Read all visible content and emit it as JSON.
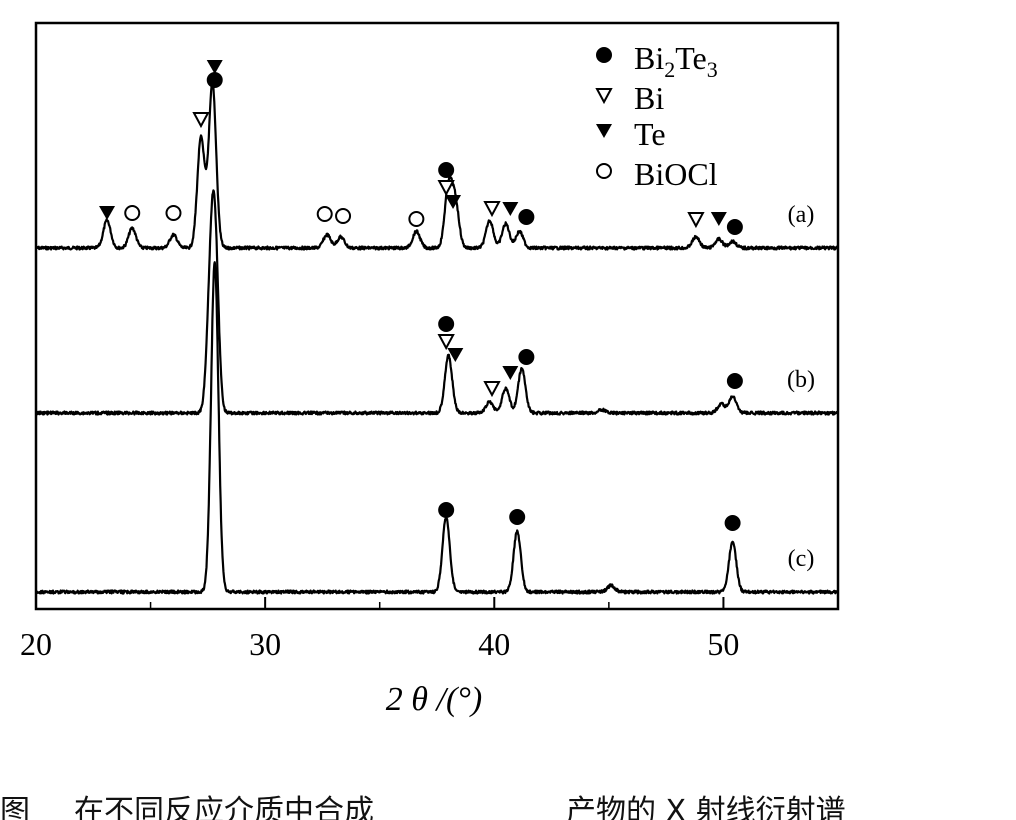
{
  "chart_data": {
    "type": "line",
    "xlabel": "2 θ /(°)",
    "ylabel": "",
    "xlim": [
      20,
      55
    ],
    "x_ticks": [
      "20",
      "30",
      "40",
      "50"
    ],
    "grid": false,
    "legend_position": "top-right",
    "legend": [
      {
        "marker": "filled-circle-icon",
        "label": "Bi2Te3"
      },
      {
        "marker": "open-down-triangle-icon",
        "label": "Bi"
      },
      {
        "marker": "filled-down-triangle-icon",
        "label": "Te"
      },
      {
        "marker": "open-circle-icon",
        "label": "BiOCl"
      }
    ],
    "series": [
      {
        "name": "(a)",
        "baseline": 0.0,
        "peaks": [
          {
            "x": 23.1,
            "height": 0.25
          },
          {
            "x": 24.2,
            "height": 0.18
          },
          {
            "x": 26.0,
            "height": 0.12
          },
          {
            "x": 27.2,
            "height": 1.0
          },
          {
            "x": 27.7,
            "height": 1.5
          },
          {
            "x": 32.7,
            "height": 0.12
          },
          {
            "x": 33.3,
            "height": 0.1
          },
          {
            "x": 36.6,
            "height": 0.15
          },
          {
            "x": 38.0,
            "height": 0.55
          },
          {
            "x": 38.3,
            "height": 0.4
          },
          {
            "x": 39.8,
            "height": 0.25
          },
          {
            "x": 40.5,
            "height": 0.22
          },
          {
            "x": 41.1,
            "height": 0.15
          },
          {
            "x": 48.8,
            "height": 0.1
          },
          {
            "x": 49.8,
            "height": 0.08
          },
          {
            "x": 50.4,
            "height": 0.06
          }
        ],
        "annotations": [
          {
            "x": 23.1,
            "marker": "filled-down-triangle-icon"
          },
          {
            "x": 24.2,
            "marker": "open-circle-icon"
          },
          {
            "x": 26.0,
            "marker": "open-circle-icon"
          },
          {
            "x": 27.2,
            "marker": "open-down-triangle-icon"
          },
          {
            "x": 27.8,
            "marker": "filled-down-triangle-icon"
          },
          {
            "x": 27.8,
            "marker": "filled-circle-icon"
          },
          {
            "x": 32.6,
            "marker": "open-circle-icon"
          },
          {
            "x": 33.4,
            "marker": "open-circle-icon"
          },
          {
            "x": 36.6,
            "marker": "open-circle-icon"
          },
          {
            "x": 37.9,
            "marker": "filled-circle-icon"
          },
          {
            "x": 37.9,
            "marker": "open-down-triangle-icon"
          },
          {
            "x": 38.2,
            "marker": "filled-down-triangle-icon"
          },
          {
            "x": 39.9,
            "marker": "open-down-triangle-icon"
          },
          {
            "x": 40.7,
            "marker": "filled-down-triangle-icon"
          },
          {
            "x": 41.4,
            "marker": "filled-circle-icon"
          },
          {
            "x": 48.8,
            "marker": "open-down-triangle-icon"
          },
          {
            "x": 49.8,
            "marker": "filled-down-triangle-icon"
          },
          {
            "x": 50.5,
            "marker": "filled-circle-icon"
          }
        ]
      },
      {
        "name": "(b)",
        "baseline": 0.0,
        "peaks": [
          {
            "x": 27.6,
            "height": 0.85
          },
          {
            "x": 27.8,
            "height": 1.55
          },
          {
            "x": 38.0,
            "height": 0.52
          },
          {
            "x": 39.8,
            "height": 0.1
          },
          {
            "x": 40.5,
            "height": 0.22
          },
          {
            "x": 41.2,
            "height": 0.4
          },
          {
            "x": 44.7,
            "height": 0.03
          },
          {
            "x": 49.9,
            "height": 0.08
          },
          {
            "x": 50.4,
            "height": 0.15
          }
        ],
        "annotations": [
          {
            "x": 37.9,
            "marker": "filled-circle-icon"
          },
          {
            "x": 37.9,
            "marker": "open-down-triangle-icon"
          },
          {
            "x": 38.3,
            "marker": "filled-down-triangle-icon"
          },
          {
            "x": 39.9,
            "marker": "open-down-triangle-icon"
          },
          {
            "x": 40.7,
            "marker": "filled-down-triangle-icon"
          },
          {
            "x": 41.4,
            "marker": "filled-circle-icon"
          },
          {
            "x": 50.5,
            "marker": "filled-circle-icon"
          }
        ]
      },
      {
        "name": "(c)",
        "baseline": 0.0,
        "peaks": [
          {
            "x": 27.8,
            "height": 3.0
          },
          {
            "x": 37.9,
            "height": 0.68
          },
          {
            "x": 41.0,
            "height": 0.55
          },
          {
            "x": 45.1,
            "height": 0.06
          },
          {
            "x": 50.4,
            "height": 0.45
          }
        ],
        "annotations": [
          {
            "x": 37.9,
            "marker": "filled-circle-icon"
          },
          {
            "x": 41.0,
            "marker": "filled-circle-icon"
          },
          {
            "x": 50.4,
            "marker": "filled-circle-icon"
          }
        ]
      }
    ]
  },
  "caption": {
    "prefix": "图",
    "middle": "在不同反应介质中合成",
    "suffix": "产物的 X 射线衍射谱"
  }
}
